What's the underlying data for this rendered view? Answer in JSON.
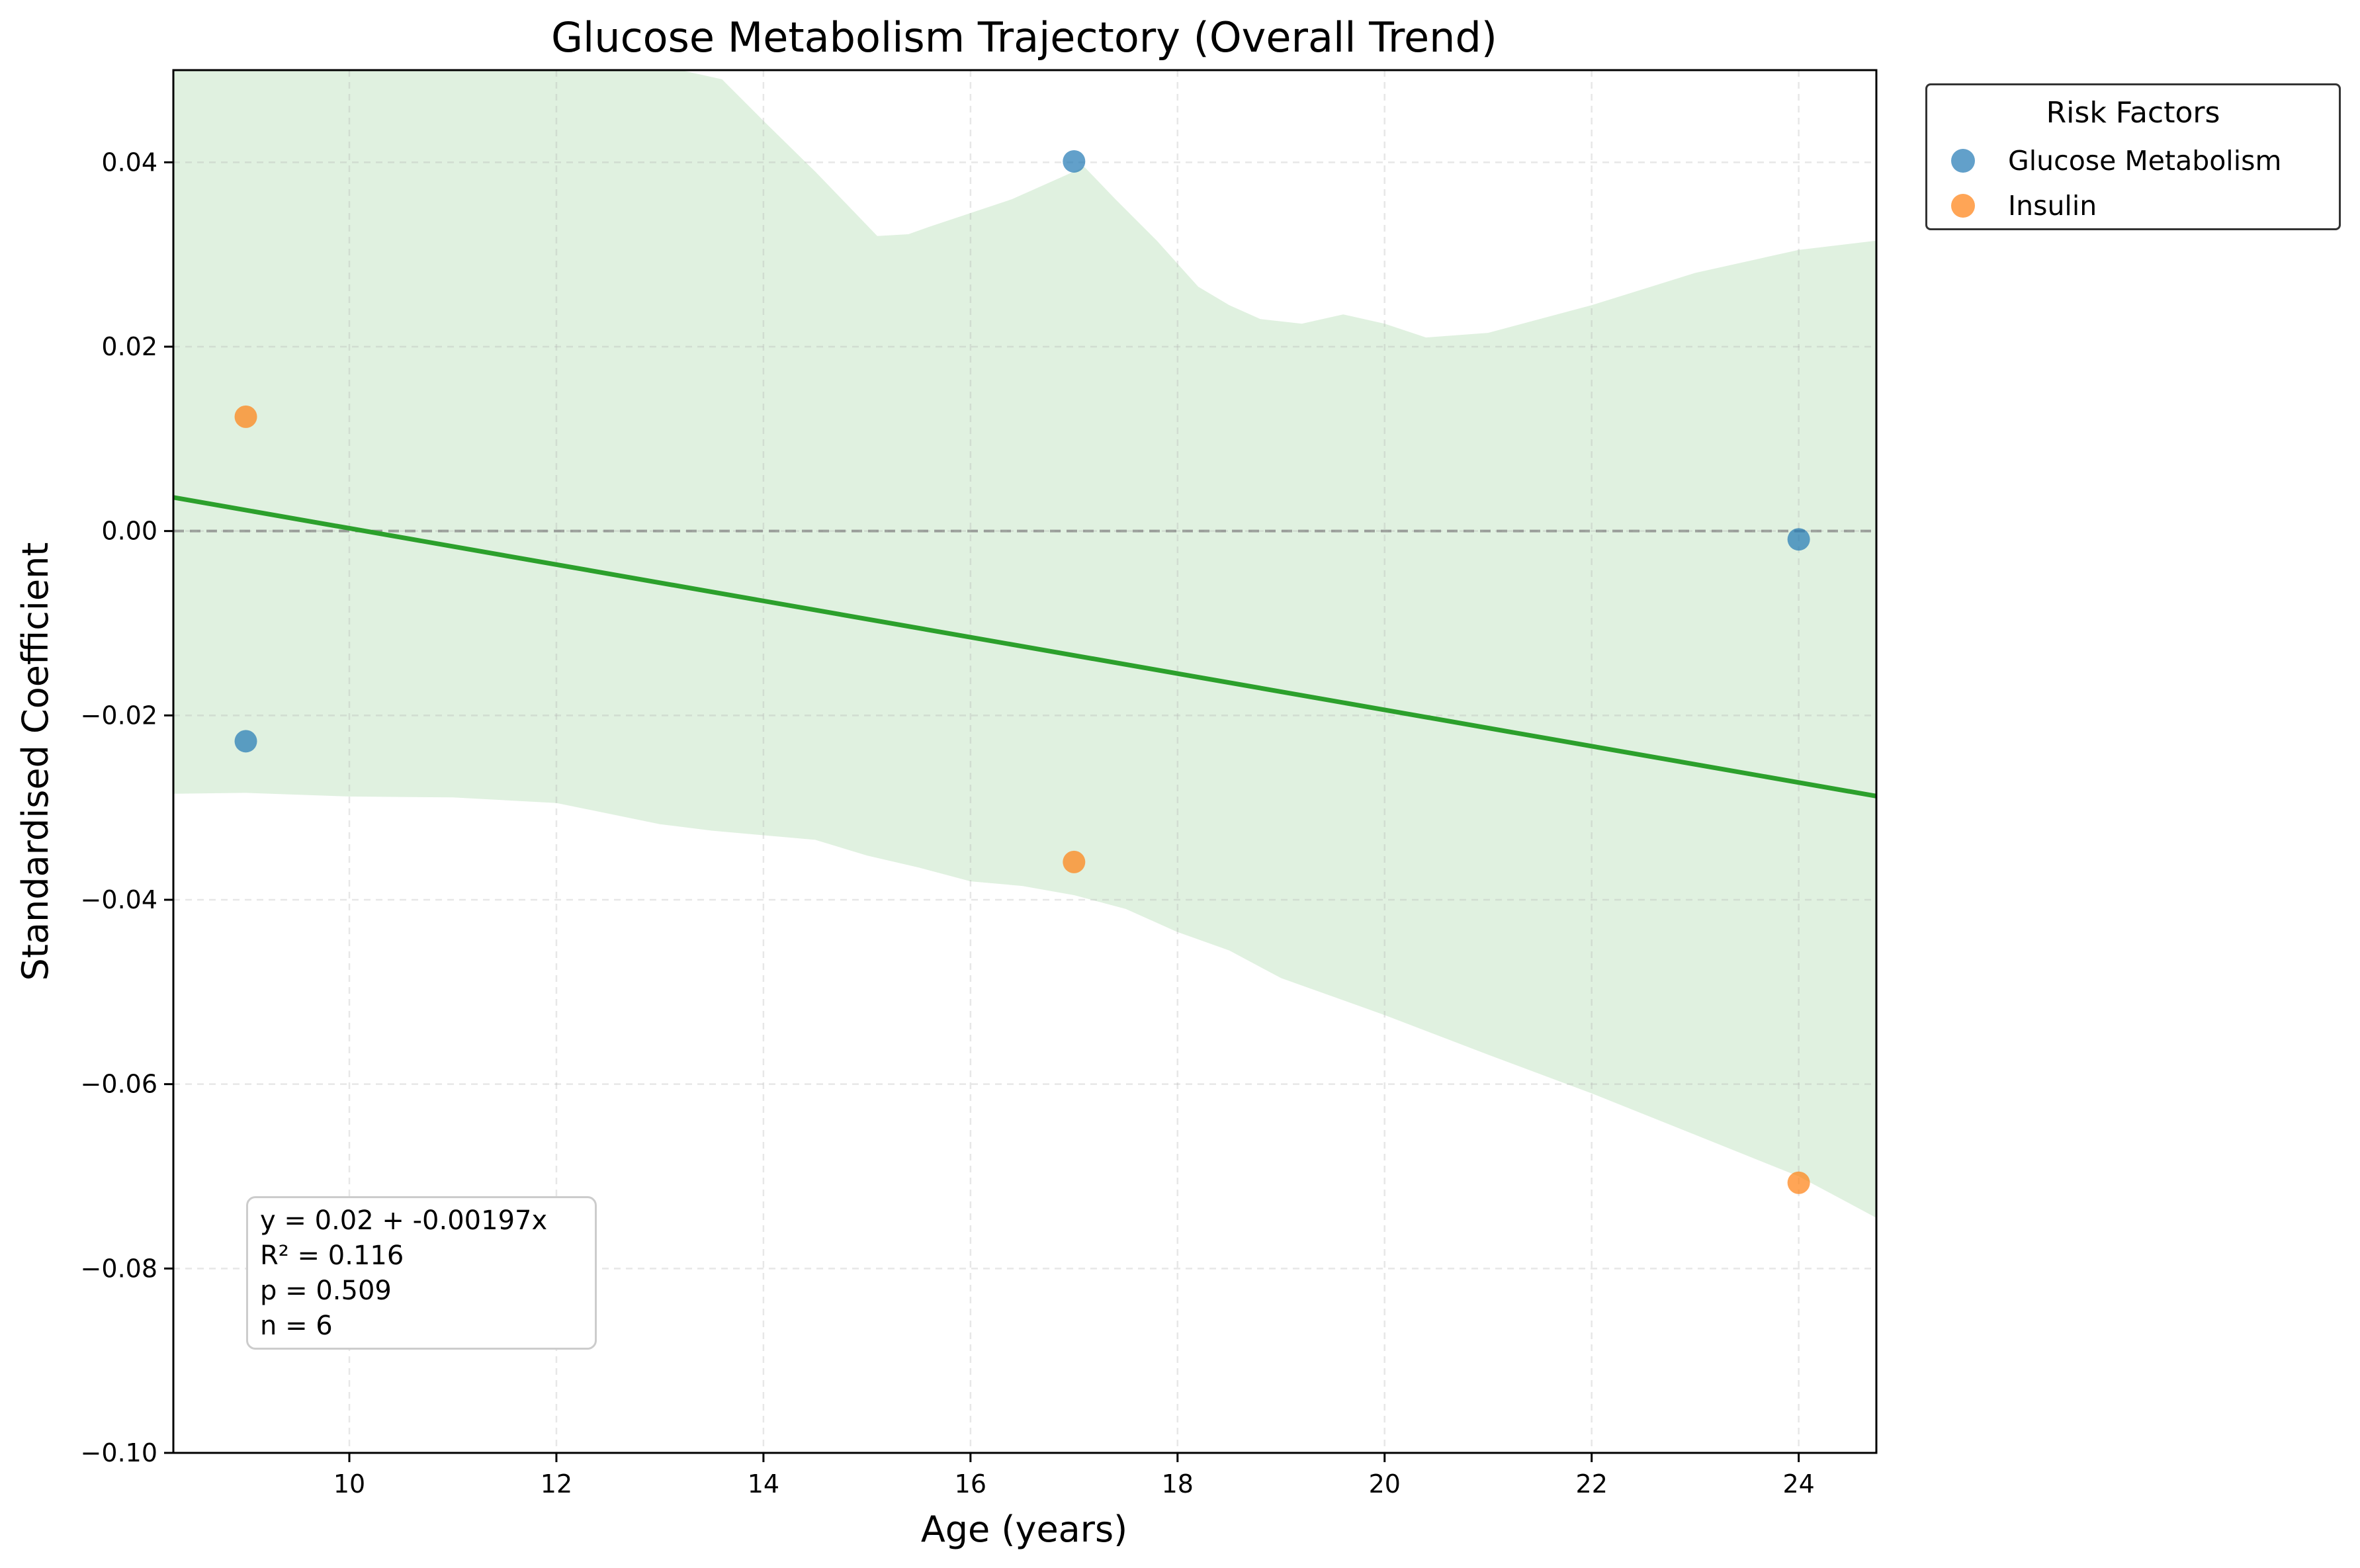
{
  "chart_data": {
    "type": "scatter",
    "title": "Glucose Metabolism Trajectory (Overall Trend)",
    "xlabel": "Age (years)",
    "ylabel": "Standardised Coefficient",
    "xlim": [
      8.3,
      24.75
    ],
    "ylim": [
      -0.1,
      0.05
    ],
    "xticks": [
      10,
      12,
      14,
      16,
      18,
      20,
      22,
      24
    ],
    "yticks": [
      -0.1,
      -0.08,
      -0.06,
      -0.04,
      -0.02,
      0.0,
      0.02,
      0.04
    ],
    "xtick_labels": [
      "10",
      "12",
      "14",
      "16",
      "18",
      "20",
      "22",
      "24"
    ],
    "ytick_labels": [
      "−0.10",
      "−0.08",
      "−0.06",
      "−0.04",
      "−0.02",
      "0.00",
      "0.02",
      "0.04"
    ],
    "grid": true,
    "reference_line_y": 0.0,
    "legend": {
      "title": "Risk Factors",
      "placement": "outside-top-right"
    },
    "series": [
      {
        "name": "Glucose Metabolism",
        "color": "#1f77b4",
        "points": [
          {
            "x": 9,
            "y": -0.0228
          },
          {
            "x": 17,
            "y": 0.0401
          },
          {
            "x": 24,
            "y": -0.0009
          }
        ]
      },
      {
        "name": "Insulin",
        "color": "#ff7f0e",
        "points": [
          {
            "x": 9,
            "y": 0.0124
          },
          {
            "x": 17,
            "y": -0.0359
          },
          {
            "x": 24,
            "y": -0.0707
          }
        ]
      }
    ],
    "trend_line": {
      "color": "#2ca02c",
      "intercept": 0.02,
      "slope": -0.00197
    },
    "confidence_band": {
      "color": "#2ca02c",
      "upper": [
        [
          8.3,
          0.06
        ],
        [
          13.2,
          0.06
        ],
        [
          13.6,
          0.049
        ],
        [
          14.0,
          0.0445
        ],
        [
          14.5,
          0.039
        ],
        [
          14.8,
          0.0355
        ],
        [
          15.1,
          0.032
        ],
        [
          15.4,
          0.0322
        ],
        [
          15.6,
          0.033
        ],
        [
          16.0,
          0.0345
        ],
        [
          16.4,
          0.036
        ],
        [
          16.8,
          0.038
        ],
        [
          17.1,
          0.0395
        ],
        [
          17.4,
          0.036
        ],
        [
          17.8,
          0.0315
        ],
        [
          18.2,
          0.0265
        ],
        [
          18.5,
          0.0245
        ],
        [
          18.8,
          0.023
        ],
        [
          19.2,
          0.0225
        ],
        [
          19.6,
          0.0235
        ],
        [
          20.0,
          0.0225
        ],
        [
          20.4,
          0.021
        ],
        [
          21.0,
          0.0215
        ],
        [
          22.0,
          0.0245
        ],
        [
          23.0,
          0.028
        ],
        [
          24.0,
          0.0305
        ],
        [
          24.75,
          0.0315
        ]
      ],
      "lower": [
        [
          8.3,
          -0.0285
        ],
        [
          9.0,
          -0.0284
        ],
        [
          10.0,
          -0.0288
        ],
        [
          11.0,
          -0.0289
        ],
        [
          12.0,
          -0.0295
        ],
        [
          13.0,
          -0.0318
        ],
        [
          13.5,
          -0.0325
        ],
        [
          14.5,
          -0.0335
        ],
        [
          15.0,
          -0.0352
        ],
        [
          15.5,
          -0.0365
        ],
        [
          16.0,
          -0.038
        ],
        [
          16.5,
          -0.0385
        ],
        [
          17.0,
          -0.0395
        ],
        [
          17.5,
          -0.041
        ],
        [
          18.0,
          -0.0435
        ],
        [
          18.5,
          -0.0455
        ],
        [
          19.0,
          -0.0485
        ],
        [
          19.5,
          -0.0505
        ],
        [
          20.0,
          -0.0525
        ],
        [
          21.0,
          -0.0568
        ],
        [
          22.0,
          -0.061
        ],
        [
          23.0,
          -0.0655
        ],
        [
          24.0,
          -0.07
        ],
        [
          24.75,
          -0.0745
        ]
      ]
    },
    "annotation": [
      "y = 0.02 + -0.00197x",
      "R² = 0.116",
      "p = 0.509",
      "n = 6"
    ]
  }
}
